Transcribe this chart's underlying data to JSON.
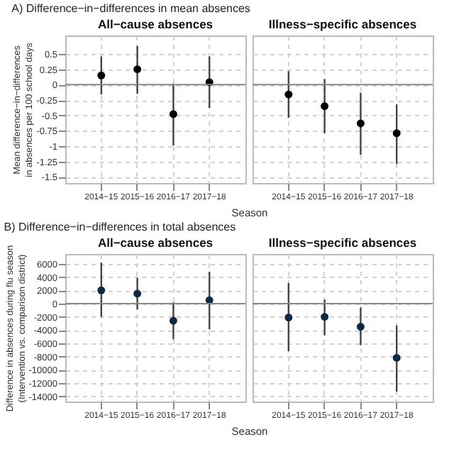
{
  "chart_data": [
    {
      "type": "scatter",
      "title": "A) Difference−in−differences in mean absences",
      "subtitle": "All−cause absences",
      "xlabel": "Season",
      "ylabel": "Mean difference−in−differences\nin absences per 100 school days",
      "categories": [
        "2014−15",
        "2015−16",
        "2016−17",
        "2017−18"
      ],
      "values": [
        0.15,
        0.25,
        -0.48,
        0.04
      ],
      "errors": [
        [
          -0.16,
          0.46
        ],
        [
          -0.15,
          0.63
        ],
        [
          -0.99,
          0.02
        ],
        [
          -0.38,
          0.46
        ]
      ],
      "color": "#000000",
      "marker": "circle",
      "ylim": [
        -1.6,
        0.8
      ],
      "yticks": [
        -1.5,
        -1.25,
        -1,
        -0.75,
        -0.5,
        -0.25,
        0,
        0.25,
        0.5
      ],
      "grid": true,
      "ref_lines": [
        {
          "axis": "y",
          "value": 0,
          "color": "#888888"
        }
      ]
    },
    {
      "type": "scatter",
      "subtitle": "Illness−specific absences",
      "categories": [
        "2014−15",
        "2015−16",
        "2016−17",
        "2017−18"
      ],
      "values": [
        -0.16,
        -0.35,
        -0.63,
        -0.79
      ],
      "errors": [
        [
          -0.54,
          0.22
        ],
        [
          -0.79,
          0.09
        ],
        [
          -1.14,
          -0.13
        ],
        [
          -1.29,
          -0.32
        ]
      ],
      "color": "#000000",
      "marker": "circle",
      "ylim": [
        -1.6,
        0.8
      ],
      "yticks": [
        -1.5,
        -1.25,
        -1,
        -0.75,
        -0.5,
        -0.25,
        0,
        0.25,
        0.5
      ],
      "tick_labels": "x",
      "grid": true,
      "ref_lines": [
        {
          "axis": "y",
          "value": 0,
          "color": "#888888"
        }
      ]
    },
    {
      "type": "scatter",
      "title": "B) Difference−in−differences in total absences",
      "subtitle": "All−cause absences",
      "xlabel": "Season",
      "ylabel": "Difference in absences during flu season\n(Intervention vs. comparison district)",
      "categories": [
        "2014−15",
        "2015−16",
        "2016−17",
        "2017−18"
      ],
      "values": [
        2000,
        1500,
        -2600,
        500
      ],
      "errors": [
        [
          -2000,
          6200
        ],
        [
          -900,
          3900
        ],
        [
          -5400,
          200
        ],
        [
          -3900,
          4800
        ]
      ],
      "color": "#0d2a45",
      "marker": "circle",
      "ylim": [
        -14800,
        7500
      ],
      "yticks": [
        -14000,
        -12000,
        -10000,
        -8000,
        -6000,
        -4000,
        -2000,
        0,
        2000,
        4000,
        6000
      ],
      "grid": true,
      "ref_lines": [
        {
          "axis": "y",
          "value": 0,
          "color": "#888888"
        }
      ]
    },
    {
      "type": "scatter",
      "subtitle": "Illness−specific absences",
      "categories": [
        "2014−15",
        "2015−16",
        "2016−17",
        "2017−18"
      ],
      "values": [
        -2100,
        -2000,
        -3500,
        -8200
      ],
      "errors": [
        [
          -7200,
          3100
        ],
        [
          -4800,
          600
        ],
        [
          -6300,
          -600
        ],
        [
          -13300,
          -3300
        ]
      ],
      "color": "#0d2a45",
      "marker": "circle",
      "ylim": [
        -14800,
        7500
      ],
      "yticks": [
        -14000,
        -12000,
        -10000,
        -8000,
        -6000,
        -4000,
        -2000,
        0,
        2000,
        4000,
        6000
      ],
      "tick_labels": "x",
      "grid": true,
      "ref_lines": [
        {
          "axis": "y",
          "value": 0,
          "color": "#888888"
        }
      ]
    }
  ]
}
